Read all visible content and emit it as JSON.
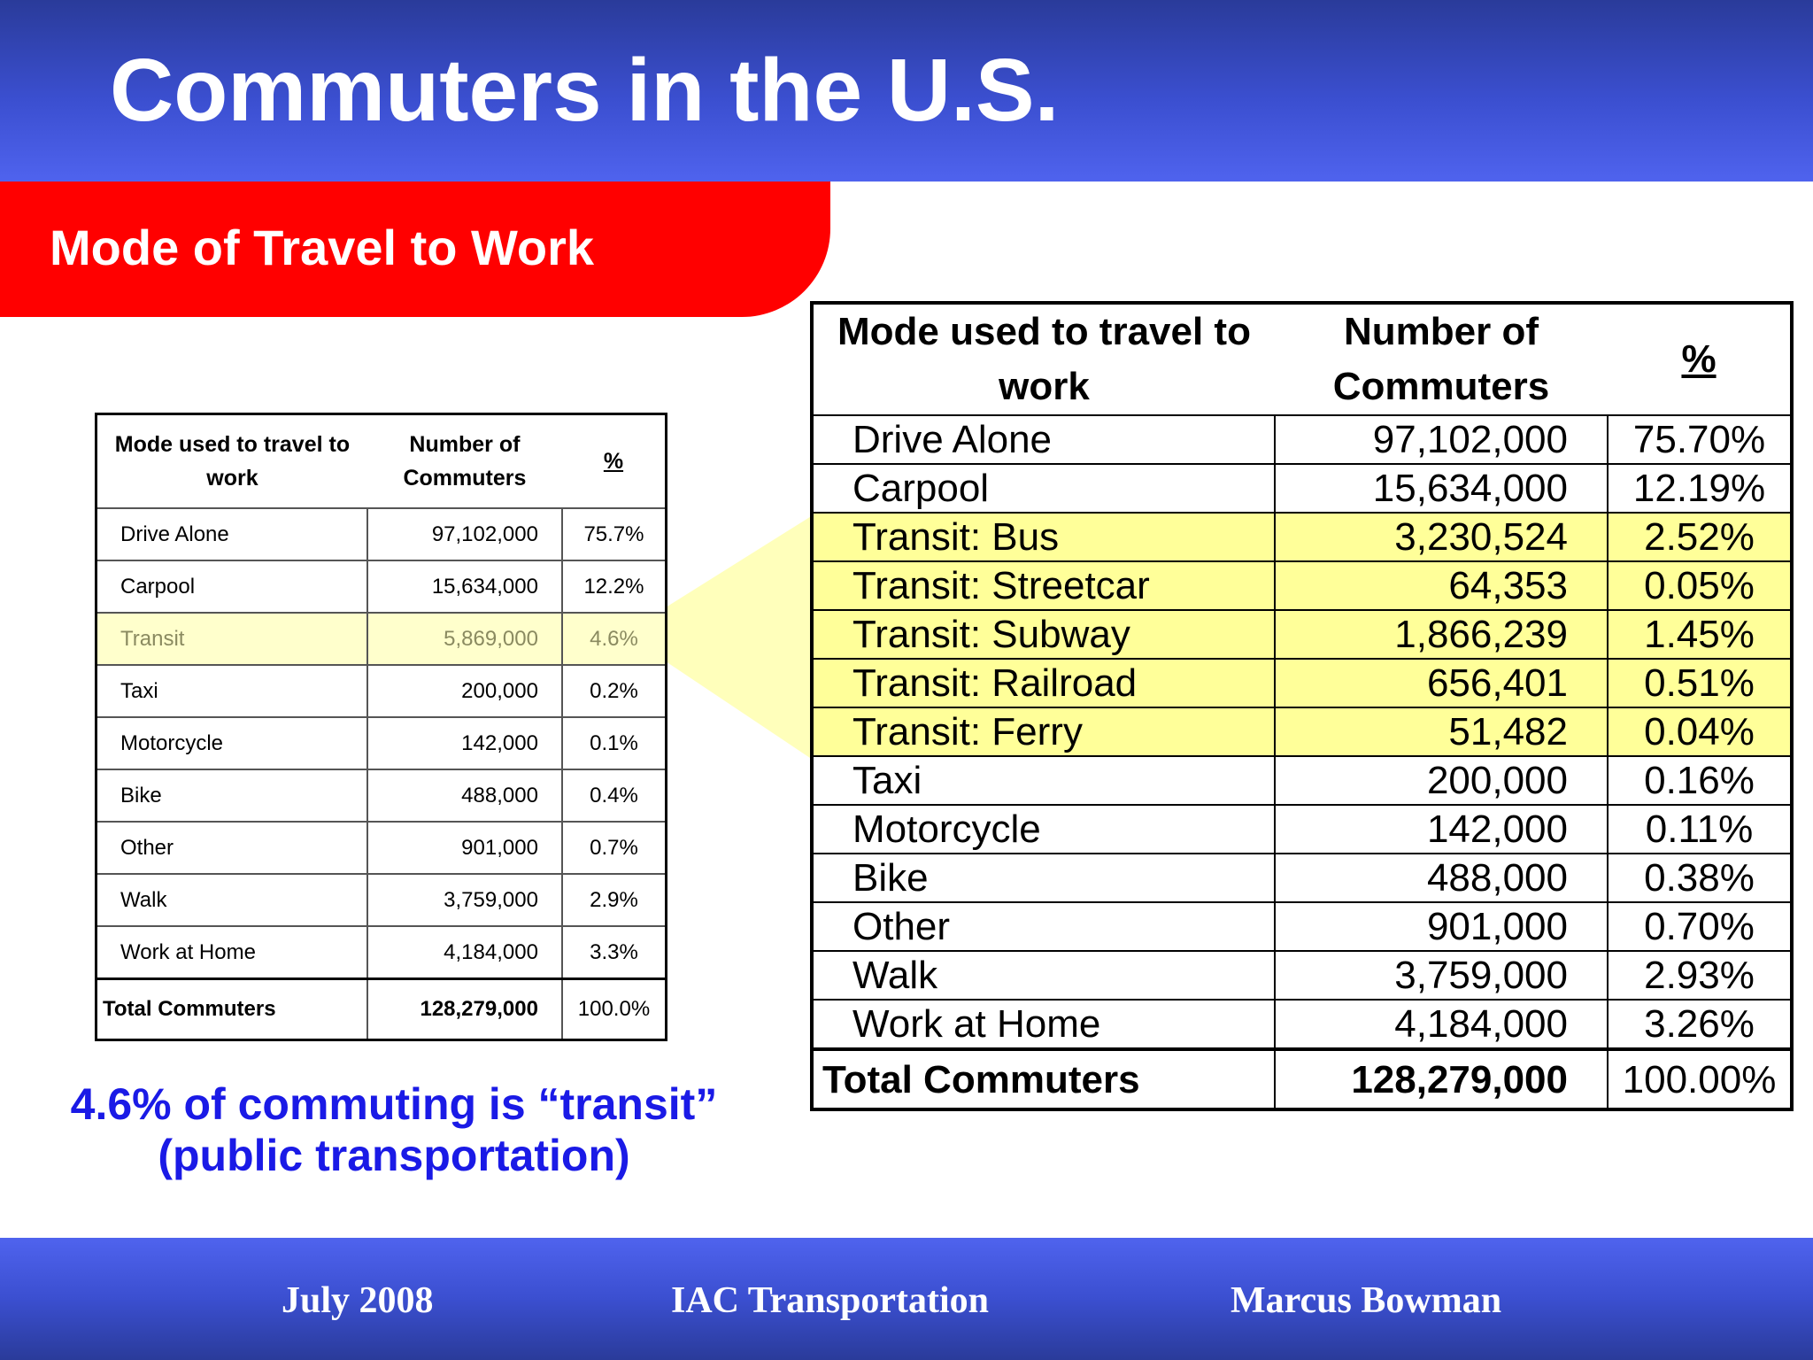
{
  "slide": {
    "title": "Commuters in the U.S.",
    "subtitle": "Mode of Travel to Work"
  },
  "summary_table": {
    "headers": {
      "mode": "Mode used to travel to work",
      "number": "Number of Commuters",
      "percent": "%"
    },
    "rows": [
      {
        "mode": "Drive Alone",
        "number": "97,102,000",
        "percent": "75.7%"
      },
      {
        "mode": "Carpool",
        "number": "15,634,000",
        "percent": "12.2%"
      },
      {
        "mode": "Transit",
        "number": "5,869,000",
        "percent": "4.6%"
      },
      {
        "mode": "Taxi",
        "number": "200,000",
        "percent": "0.2%"
      },
      {
        "mode": "Motorcycle",
        "number": "142,000",
        "percent": "0.1%"
      },
      {
        "mode": "Bike",
        "number": "488,000",
        "percent": "0.4%"
      },
      {
        "mode": "Other",
        "number": "901,000",
        "percent": "0.7%"
      },
      {
        "mode": "Walk",
        "number": "3,759,000",
        "percent": "2.9%"
      },
      {
        "mode": "Work at Home",
        "number": "4,184,000",
        "percent": "3.3%"
      }
    ],
    "total": {
      "mode": "Total Commuters",
      "number": "128,279,000",
      "percent": "100.0%"
    }
  },
  "detail_table": {
    "headers": {
      "mode": "Mode used to travel to work",
      "number": "Number of Commuters",
      "percent": "%"
    },
    "rows": [
      {
        "mode": "Drive Alone",
        "number": "97,102,000",
        "percent": "75.70%"
      },
      {
        "mode": "Carpool",
        "number": "15,634,000",
        "percent": "12.19%"
      },
      {
        "mode": "Transit: Bus",
        "number": "3,230,524",
        "percent": "2.52%"
      },
      {
        "mode": "Transit: Streetcar",
        "number": "64,353",
        "percent": "0.05%"
      },
      {
        "mode": "Transit: Subway",
        "number": "1,866,239",
        "percent": "1.45%"
      },
      {
        "mode": "Transit: Railroad",
        "number": "656,401",
        "percent": "0.51%"
      },
      {
        "mode": "Transit: Ferry",
        "number": "51,482",
        "percent": "0.04%"
      },
      {
        "mode": "Taxi",
        "number": "200,000",
        "percent": "0.16%"
      },
      {
        "mode": "Motorcycle",
        "number": "142,000",
        "percent": "0.11%"
      },
      {
        "mode": "Bike",
        "number": "488,000",
        "percent": "0.38%"
      },
      {
        "mode": "Other",
        "number": "901,000",
        "percent": "0.70%"
      },
      {
        "mode": "Walk",
        "number": "3,759,000",
        "percent": "2.93%"
      },
      {
        "mode": "Work at Home",
        "number": "4,184,000",
        "percent": "3.26%"
      }
    ],
    "total": {
      "mode": "Total Commuters",
      "number": "128,279,000",
      "percent": "100.00%"
    }
  },
  "caption": {
    "line1": "4.6% of commuting is “transit”",
    "line2": "(public transportation)"
  },
  "footer": {
    "date": "July 2008",
    "org": "IAC Transportation",
    "author": "Marcus Bowman"
  },
  "colors": {
    "header_blue": "#3b4fd0",
    "subtitle_red": "#ff0000",
    "highlight_yellow": "#ffff99",
    "caption_blue": "#1a1ae6"
  }
}
